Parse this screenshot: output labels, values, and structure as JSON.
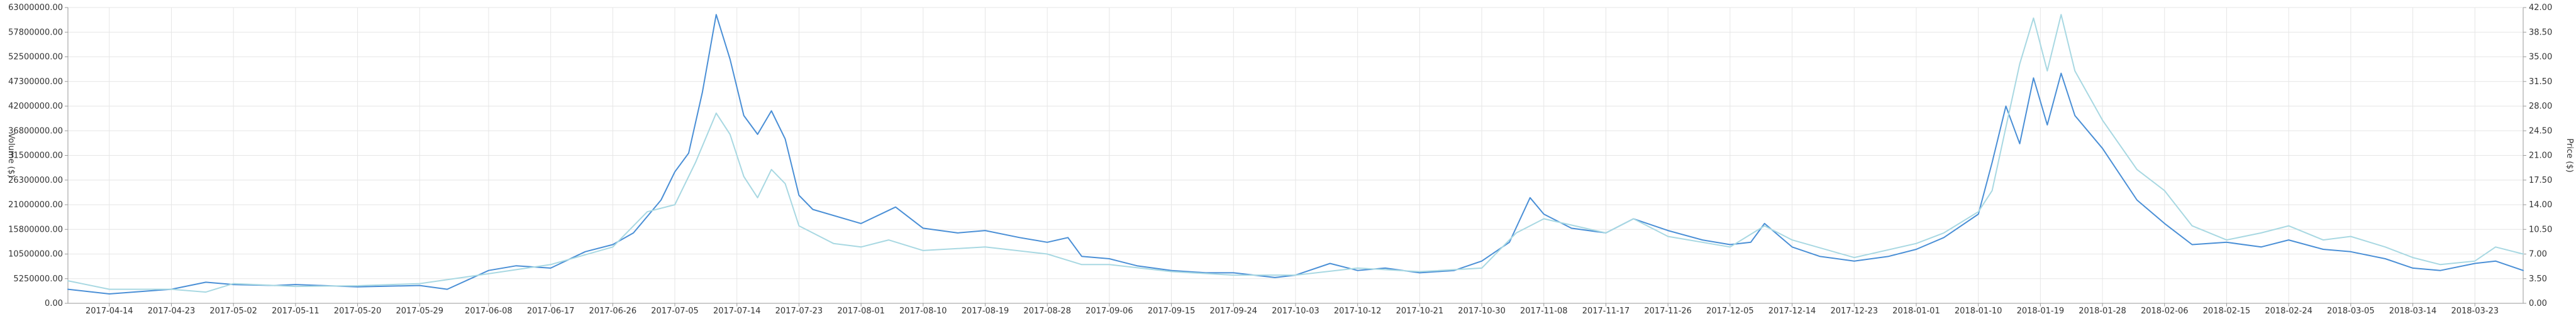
{
  "chart_data": {
    "type": "line",
    "title": "",
    "ylabel_left": "Volume ($)",
    "ylabel_right": "Price ($)",
    "ylim_left": [
      0,
      63000000
    ],
    "ylim_right": [
      0,
      42
    ],
    "left_ticks": [
      "0.00",
      "5250000.00",
      "10500000.00",
      "15800000.00",
      "21000000.00",
      "26300000.00",
      "31500000.00",
      "36800000.00",
      "42000000.00",
      "47300000.00",
      "52500000.00",
      "57800000.00",
      "63000000.00"
    ],
    "right_ticks": [
      "0.00",
      "3.50",
      "7.00",
      "10.50",
      "14.00",
      "17.50",
      "21.00",
      "24.50",
      "28.00",
      "31.50",
      "35.00",
      "38.50",
      "42.00"
    ],
    "x_start": "2017-04-08",
    "x_end": "2018-03-30",
    "x_ticks": [
      "2017-04-14",
      "2017-04-23",
      "2017-05-02",
      "2017-05-11",
      "2017-05-20",
      "2017-05-29",
      "2017-06-08",
      "2017-06-17",
      "2017-06-26",
      "2017-07-05",
      "2017-07-14",
      "2017-07-23",
      "2017-08-01",
      "2017-08-10",
      "2017-08-19",
      "2017-08-28",
      "2017-09-06",
      "2017-09-15",
      "2017-09-24",
      "2017-10-03",
      "2017-10-12",
      "2017-10-21",
      "2017-10-30",
      "2017-11-08",
      "2017-11-17",
      "2017-11-26",
      "2017-12-05",
      "2017-12-14",
      "2017-12-23",
      "2018-01-01",
      "2018-01-10",
      "2018-01-19",
      "2018-01-28",
      "2018-02-06",
      "2018-02-15",
      "2018-02-24",
      "2018-03-05",
      "2018-03-14",
      "2018-03-23"
    ],
    "grid": true,
    "legend": "none",
    "series": [
      {
        "axis": "left",
        "color": "#4a8fd6",
        "points": [
          [
            "2017-04-08",
            3000000
          ],
          [
            "2017-04-14",
            2000000
          ],
          [
            "2017-04-23",
            3000000
          ],
          [
            "2017-04-28",
            4500000
          ],
          [
            "2017-05-02",
            4000000
          ],
          [
            "2017-05-08",
            3800000
          ],
          [
            "2017-05-11",
            4000000
          ],
          [
            "2017-05-20",
            3500000
          ],
          [
            "2017-05-29",
            3800000
          ],
          [
            "2017-06-02",
            3000000
          ],
          [
            "2017-06-08",
            7000000
          ],
          [
            "2017-06-12",
            8000000
          ],
          [
            "2017-06-17",
            7500000
          ],
          [
            "2017-06-22",
            11000000
          ],
          [
            "2017-06-26",
            12500000
          ],
          [
            "2017-06-29",
            15000000
          ],
          [
            "2017-07-03",
            22000000
          ],
          [
            "2017-07-05",
            28000000
          ],
          [
            "2017-07-07",
            32000000
          ],
          [
            "2017-07-09",
            45000000
          ],
          [
            "2017-07-11",
            61500000
          ],
          [
            "2017-07-13",
            52000000
          ],
          [
            "2017-07-15",
            40000000
          ],
          [
            "2017-07-17",
            36000000
          ],
          [
            "2017-07-19",
            41000000
          ],
          [
            "2017-07-21",
            35000000
          ],
          [
            "2017-07-23",
            23000000
          ],
          [
            "2017-07-25",
            20000000
          ],
          [
            "2017-08-01",
            17000000
          ],
          [
            "2017-08-06",
            20500000
          ],
          [
            "2017-08-10",
            16000000
          ],
          [
            "2017-08-15",
            15000000
          ],
          [
            "2017-08-19",
            15500000
          ],
          [
            "2017-08-24",
            14000000
          ],
          [
            "2017-08-28",
            13000000
          ],
          [
            "2017-08-31",
            14000000
          ],
          [
            "2017-09-02",
            10000000
          ],
          [
            "2017-09-06",
            9500000
          ],
          [
            "2017-09-10",
            8000000
          ],
          [
            "2017-09-15",
            7000000
          ],
          [
            "2017-09-20",
            6500000
          ],
          [
            "2017-09-24",
            6500000
          ],
          [
            "2017-09-30",
            5500000
          ],
          [
            "2017-10-03",
            6000000
          ],
          [
            "2017-10-08",
            8500000
          ],
          [
            "2017-10-12",
            7000000
          ],
          [
            "2017-10-16",
            7500000
          ],
          [
            "2017-10-21",
            6500000
          ],
          [
            "2017-10-26",
            7000000
          ],
          [
            "2017-10-30",
            9000000
          ],
          [
            "2017-11-03",
            13000000
          ],
          [
            "2017-11-06",
            22500000
          ],
          [
            "2017-11-08",
            19000000
          ],
          [
            "2017-11-12",
            16000000
          ],
          [
            "2017-11-17",
            15000000
          ],
          [
            "2017-11-21",
            18000000
          ],
          [
            "2017-11-26",
            15500000
          ],
          [
            "2017-12-01",
            13500000
          ],
          [
            "2017-12-05",
            12500000
          ],
          [
            "2017-12-08",
            13000000
          ],
          [
            "2017-12-10",
            17000000
          ],
          [
            "2017-12-14",
            12000000
          ],
          [
            "2017-12-18",
            10000000
          ],
          [
            "2017-12-23",
            9000000
          ],
          [
            "2017-12-28",
            10000000
          ],
          [
            "2018-01-01",
            11500000
          ],
          [
            "2018-01-05",
            14000000
          ],
          [
            "2018-01-10",
            19000000
          ],
          [
            "2018-01-12",
            30000000
          ],
          [
            "2018-01-14",
            42000000
          ],
          [
            "2018-01-16",
            34000000
          ],
          [
            "2018-01-18",
            48000000
          ],
          [
            "2018-01-20",
            38000000
          ],
          [
            "2018-01-22",
            49000000
          ],
          [
            "2018-01-24",
            40000000
          ],
          [
            "2018-01-28",
            33000000
          ],
          [
            "2018-02-02",
            22000000
          ],
          [
            "2018-02-06",
            17000000
          ],
          [
            "2018-02-10",
            12500000
          ],
          [
            "2018-02-15",
            13000000
          ],
          [
            "2018-02-20",
            12000000
          ],
          [
            "2018-02-24",
            13500000
          ],
          [
            "2018-03-01",
            11500000
          ],
          [
            "2018-03-05",
            11000000
          ],
          [
            "2018-03-10",
            9500000
          ],
          [
            "2018-03-14",
            7500000
          ],
          [
            "2018-03-18",
            7000000
          ],
          [
            "2018-03-23",
            8500000
          ],
          [
            "2018-03-26",
            9000000
          ],
          [
            "2018-03-30",
            7000000
          ]
        ]
      },
      {
        "axis": "right",
        "color": "#a8d8e2",
        "points": [
          [
            "2017-04-08",
            3.2
          ],
          [
            "2017-04-14",
            2.0
          ],
          [
            "2017-04-23",
            2.0
          ],
          [
            "2017-04-28",
            1.6
          ],
          [
            "2017-05-02",
            2.8
          ],
          [
            "2017-05-11",
            2.4
          ],
          [
            "2017-05-20",
            2.5
          ],
          [
            "2017-05-29",
            2.8
          ],
          [
            "2017-06-08",
            4.2
          ],
          [
            "2017-06-17",
            5.5
          ],
          [
            "2017-06-26",
            8.0
          ],
          [
            "2017-07-01",
            13.0
          ],
          [
            "2017-07-05",
            14.0
          ],
          [
            "2017-07-08",
            20.0
          ],
          [
            "2017-07-11",
            27.0
          ],
          [
            "2017-07-13",
            24.0
          ],
          [
            "2017-07-15",
            18.0
          ],
          [
            "2017-07-17",
            15.0
          ],
          [
            "2017-07-19",
            19.0
          ],
          [
            "2017-07-21",
            17.0
          ],
          [
            "2017-07-23",
            11.0
          ],
          [
            "2017-07-28",
            8.5
          ],
          [
            "2017-08-01",
            8.0
          ],
          [
            "2017-08-05",
            9.0
          ],
          [
            "2017-08-10",
            7.5
          ],
          [
            "2017-08-19",
            8.0
          ],
          [
            "2017-08-28",
            7.0
          ],
          [
            "2017-09-02",
            5.5
          ],
          [
            "2017-09-06",
            5.5
          ],
          [
            "2017-09-15",
            4.5
          ],
          [
            "2017-09-24",
            4.0
          ],
          [
            "2017-10-03",
            4.0
          ],
          [
            "2017-10-12",
            5.0
          ],
          [
            "2017-10-21",
            4.5
          ],
          [
            "2017-10-30",
            5.0
          ],
          [
            "2017-11-04",
            10.0
          ],
          [
            "2017-11-08",
            12.0
          ],
          [
            "2017-11-17",
            10.0
          ],
          [
            "2017-11-21",
            12.0
          ],
          [
            "2017-11-26",
            9.5
          ],
          [
            "2017-12-05",
            8.0
          ],
          [
            "2017-12-10",
            11.0
          ],
          [
            "2017-12-14",
            9.0
          ],
          [
            "2017-12-23",
            6.5
          ],
          [
            "2018-01-01",
            8.5
          ],
          [
            "2018-01-05",
            10.0
          ],
          [
            "2018-01-10",
            13.0
          ],
          [
            "2018-01-12",
            16.0
          ],
          [
            "2018-01-14",
            25.0
          ],
          [
            "2018-01-16",
            34.0
          ],
          [
            "2018-01-18",
            40.5
          ],
          [
            "2018-01-20",
            33.0
          ],
          [
            "2018-01-22",
            41.0
          ],
          [
            "2018-01-24",
            33.0
          ],
          [
            "2018-01-28",
            26.0
          ],
          [
            "2018-02-02",
            19.0
          ],
          [
            "2018-02-06",
            16.0
          ],
          [
            "2018-02-10",
            11.0
          ],
          [
            "2018-02-15",
            9.0
          ],
          [
            "2018-02-20",
            10.0
          ],
          [
            "2018-02-24",
            11.0
          ],
          [
            "2018-03-01",
            9.0
          ],
          [
            "2018-03-05",
            9.5
          ],
          [
            "2018-03-10",
            8.0
          ],
          [
            "2018-03-14",
            6.5
          ],
          [
            "2018-03-18",
            5.5
          ],
          [
            "2018-03-23",
            6.0
          ],
          [
            "2018-03-26",
            8.0
          ],
          [
            "2018-03-30",
            7.0
          ]
        ]
      }
    ]
  }
}
